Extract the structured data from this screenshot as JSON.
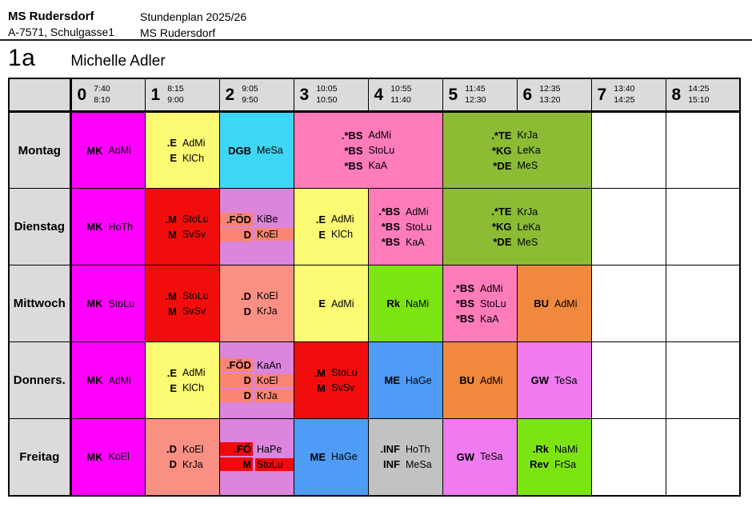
{
  "header": {
    "school_name": "MS Rudersdorf",
    "school_address": "A-7571, Schulgasse1",
    "plan_title": "Stundenplan 2025/26",
    "plan_school": "MS Rudersdorf",
    "class_name": "1a",
    "student_name": "Michelle Adler"
  },
  "colors": {
    "header_gray": "#DBDBDB",
    "white": "#FFFFFF",
    "magenta": "#FF00FF",
    "yellow": "#FDFA73",
    "cyan": "#3FD5F4",
    "pink": "#FF7CBA",
    "olive_green": "#8BBC34",
    "red": "#F20D0D",
    "orchid": "#DC85DC",
    "salmon": "#FA9084",
    "chartreuse": "#7DE414",
    "orange": "#F0893D",
    "blue": "#4E9CF5",
    "violet": "#F07AF0",
    "gray": "#C2C2C2",
    "hl_salmon": "#FB8472",
    "hl_red": "#F00A0A"
  },
  "timetable": {
    "periods": [
      {
        "num": "0",
        "start": "7:40",
        "end": "8:10"
      },
      {
        "num": "1",
        "start": "8:15",
        "end": "9:00"
      },
      {
        "num": "2",
        "start": "9:05",
        "end": "9:50"
      },
      {
        "num": "3",
        "start": "10:05",
        "end": "10:50"
      },
      {
        "num": "4",
        "start": "10:55",
        "end": "11:40"
      },
      {
        "num": "5",
        "start": "11:45",
        "end": "12:30"
      },
      {
        "num": "6",
        "start": "12:35",
        "end": "13:20"
      },
      {
        "num": "7",
        "start": "13:40",
        "end": "14:25"
      },
      {
        "num": "8",
        "start": "14:25",
        "end": "15:10"
      }
    ],
    "days": [
      {
        "id": "montag",
        "label": "Montag",
        "cells": [
          {
            "period": 0,
            "span": 1,
            "color": "magenta",
            "lines": [
              {
                "subject": "MK",
                "teacher": "AdMi"
              }
            ]
          },
          {
            "period": 1,
            "span": 1,
            "color": "yellow",
            "lines": [
              {
                "subject": ".E",
                "teacher": "AdMi"
              },
              {
                "subject": "E",
                "teacher": "KlCh"
              }
            ]
          },
          {
            "period": 2,
            "span": 1,
            "color": "cyan",
            "lines": [
              {
                "subject": "DGB",
                "teacher": "MeSa"
              }
            ]
          },
          {
            "period": 3,
            "span": 2,
            "color": "pink",
            "lines": [
              {
                "subject": ".*BS",
                "teacher": "AdMi"
              },
              {
                "subject": "*BS",
                "teacher": "StoLu"
              },
              {
                "subject": "*BS",
                "teacher": "KaA"
              }
            ]
          },
          {
            "period": 5,
            "span": 2,
            "color": "olive_green",
            "lines": [
              {
                "subject": ".*TE",
                "teacher": "KrJa"
              },
              {
                "subject": "*KG",
                "teacher": "LeKa"
              },
              {
                "subject": "*DE",
                "teacher": "MeS"
              }
            ]
          },
          {
            "period": 7,
            "span": 1,
            "color": "white",
            "lines": []
          },
          {
            "period": 8,
            "span": 1,
            "color": "white",
            "lines": []
          }
        ]
      },
      {
        "id": "dienstag",
        "label": "Dienstag",
        "cells": [
          {
            "period": 0,
            "span": 1,
            "color": "magenta",
            "lines": [
              {
                "subject": "MK",
                "teacher": "HoTh"
              }
            ]
          },
          {
            "period": 1,
            "span": 1,
            "color": "red",
            "lines": [
              {
                "subject": ".M",
                "teacher": "StoLu"
              },
              {
                "subject": "M",
                "teacher": "SvSv"
              }
            ]
          },
          {
            "period": 2,
            "span": 1,
            "color": "orchid",
            "lines": [
              {
                "subject": ".FÖD",
                "teacher": "KiBe",
                "subject_highlight": "hl_salmon"
              },
              {
                "subject": "D",
                "teacher": "KoEl",
                "subject_highlight": "hl_salmon",
                "teacher_highlight": "hl_salmon"
              }
            ]
          },
          {
            "period": 3,
            "span": 1,
            "color": "yellow",
            "lines": [
              {
                "subject": ".E",
                "teacher": "AdMi"
              },
              {
                "subject": "E",
                "teacher": "KlCh"
              }
            ]
          },
          {
            "period": 4,
            "span": 1,
            "color": "pink",
            "lines": [
              {
                "subject": ".*BS",
                "teacher": "AdMi"
              },
              {
                "subject": "*BS",
                "teacher": "StoLu"
              },
              {
                "subject": "*BS",
                "teacher": "KaA"
              }
            ]
          },
          {
            "period": 5,
            "span": 2,
            "color": "olive_green",
            "lines": [
              {
                "subject": ".*TE",
                "teacher": "KrJa"
              },
              {
                "subject": "*KG",
                "teacher": "LeKa"
              },
              {
                "subject": "*DE",
                "teacher": "MeS"
              }
            ]
          },
          {
            "period": 7,
            "span": 1,
            "color": "white",
            "lines": []
          },
          {
            "period": 8,
            "span": 1,
            "color": "white",
            "lines": []
          }
        ]
      },
      {
        "id": "mittwoch",
        "label": "Mittwoch",
        "cells": [
          {
            "period": 0,
            "span": 1,
            "color": "magenta",
            "lines": [
              {
                "subject": "MK",
                "teacher": "StoLu"
              }
            ]
          },
          {
            "period": 1,
            "span": 1,
            "color": "red",
            "lines": [
              {
                "subject": ".M",
                "teacher": "StoLu"
              },
              {
                "subject": "M",
                "teacher": "SvSv"
              }
            ]
          },
          {
            "period": 2,
            "span": 1,
            "color": "salmon",
            "lines": [
              {
                "subject": ".D",
                "teacher": "KoEl"
              },
              {
                "subject": "D",
                "teacher": "KrJa"
              }
            ]
          },
          {
            "period": 3,
            "span": 1,
            "color": "yellow",
            "lines": [
              {
                "subject": "E",
                "teacher": "AdMi"
              }
            ]
          },
          {
            "period": 4,
            "span": 1,
            "color": "chartreuse",
            "lines": [
              {
                "subject": "Rk",
                "teacher": "NaMi"
              }
            ]
          },
          {
            "period": 5,
            "span": 1,
            "color": "pink",
            "lines": [
              {
                "subject": ".*BS",
                "teacher": "AdMi"
              },
              {
                "subject": "*BS",
                "teacher": "StoLu"
              },
              {
                "subject": "*BS",
                "teacher": "KaA"
              }
            ]
          },
          {
            "period": 6,
            "span": 1,
            "color": "orange",
            "lines": [
              {
                "subject": "BU",
                "teacher": "AdMi"
              }
            ]
          },
          {
            "period": 7,
            "span": 1,
            "color": "white",
            "lines": []
          },
          {
            "period": 8,
            "span": 1,
            "color": "white",
            "lines": []
          }
        ]
      },
      {
        "id": "donnerstag",
        "label": "Donners.",
        "cells": [
          {
            "period": 0,
            "span": 1,
            "color": "magenta",
            "lines": [
              {
                "subject": "MK",
                "teacher": "AdMi"
              }
            ]
          },
          {
            "period": 1,
            "span": 1,
            "color": "yellow",
            "lines": [
              {
                "subject": ".E",
                "teacher": "AdMi"
              },
              {
                "subject": "E",
                "teacher": "KlCh"
              }
            ]
          },
          {
            "period": 2,
            "span": 1,
            "color": "orchid",
            "lines": [
              {
                "subject": ".FÖD",
                "teacher": "KaAn",
                "subject_highlight": "hl_salmon"
              },
              {
                "subject": "D",
                "teacher": "KoEl",
                "subject_highlight": "hl_salmon",
                "teacher_highlight": "hl_salmon"
              },
              {
                "subject": "D",
                "teacher": "KrJa",
                "subject_highlight": "hl_salmon",
                "teacher_highlight": "hl_salmon"
              }
            ]
          },
          {
            "period": 3,
            "span": 1,
            "color": "red",
            "lines": [
              {
                "subject": ".M",
                "teacher": "StoLu"
              },
              {
                "subject": "M",
                "teacher": "SvSv"
              }
            ]
          },
          {
            "period": 4,
            "span": 1,
            "color": "blue",
            "lines": [
              {
                "subject": "ME",
                "teacher": "HaGe"
              }
            ]
          },
          {
            "period": 5,
            "span": 1,
            "color": "orange",
            "lines": [
              {
                "subject": "BU",
                "teacher": "AdMi"
              }
            ]
          },
          {
            "period": 6,
            "span": 1,
            "color": "violet",
            "lines": [
              {
                "subject": "GW",
                "teacher": "TeSa"
              }
            ]
          },
          {
            "period": 7,
            "span": 1,
            "color": "white",
            "lines": []
          },
          {
            "period": 8,
            "span": 1,
            "color": "white",
            "lines": []
          }
        ]
      },
      {
        "id": "freitag",
        "label": "Freitag",
        "cells": [
          {
            "period": 0,
            "span": 1,
            "color": "magenta",
            "lines": [
              {
                "subject": "MK",
                "teacher": "KoEl"
              }
            ]
          },
          {
            "period": 1,
            "span": 1,
            "color": "salmon",
            "lines": [
              {
                "subject": ".D",
                "teacher": "KoEl"
              },
              {
                "subject": "D",
                "teacher": "KrJa"
              }
            ]
          },
          {
            "period": 2,
            "span": 1,
            "color": "orchid",
            "lines": [
              {
                "subject": ".FÖ",
                "teacher": "HaPe",
                "subject_highlight": "hl_red"
              },
              {
                "subject": "M",
                "teacher": "StoLu",
                "subject_highlight": "hl_red",
                "teacher_highlight": "hl_red"
              }
            ]
          },
          {
            "period": 3,
            "span": 1,
            "color": "blue",
            "lines": [
              {
                "subject": "ME",
                "teacher": "HaGe"
              }
            ]
          },
          {
            "period": 4,
            "span": 1,
            "color": "gray",
            "lines": [
              {
                "subject": ".INF",
                "teacher": "HoTh"
              },
              {
                "subject": "INF",
                "teacher": "MeSa"
              }
            ]
          },
          {
            "period": 5,
            "span": 1,
            "color": "violet",
            "lines": [
              {
                "subject": "GW",
                "teacher": "TeSa"
              }
            ]
          },
          {
            "period": 6,
            "span": 1,
            "color": "chartreuse",
            "lines": [
              {
                "subject": ".Rk",
                "teacher": "NaMi"
              },
              {
                "subject": "Rev",
                "teacher": "FrSa"
              }
            ]
          },
          {
            "period": 7,
            "span": 1,
            "color": "white",
            "lines": []
          },
          {
            "period": 8,
            "span": 1,
            "color": "white",
            "lines": []
          }
        ]
      }
    ]
  }
}
